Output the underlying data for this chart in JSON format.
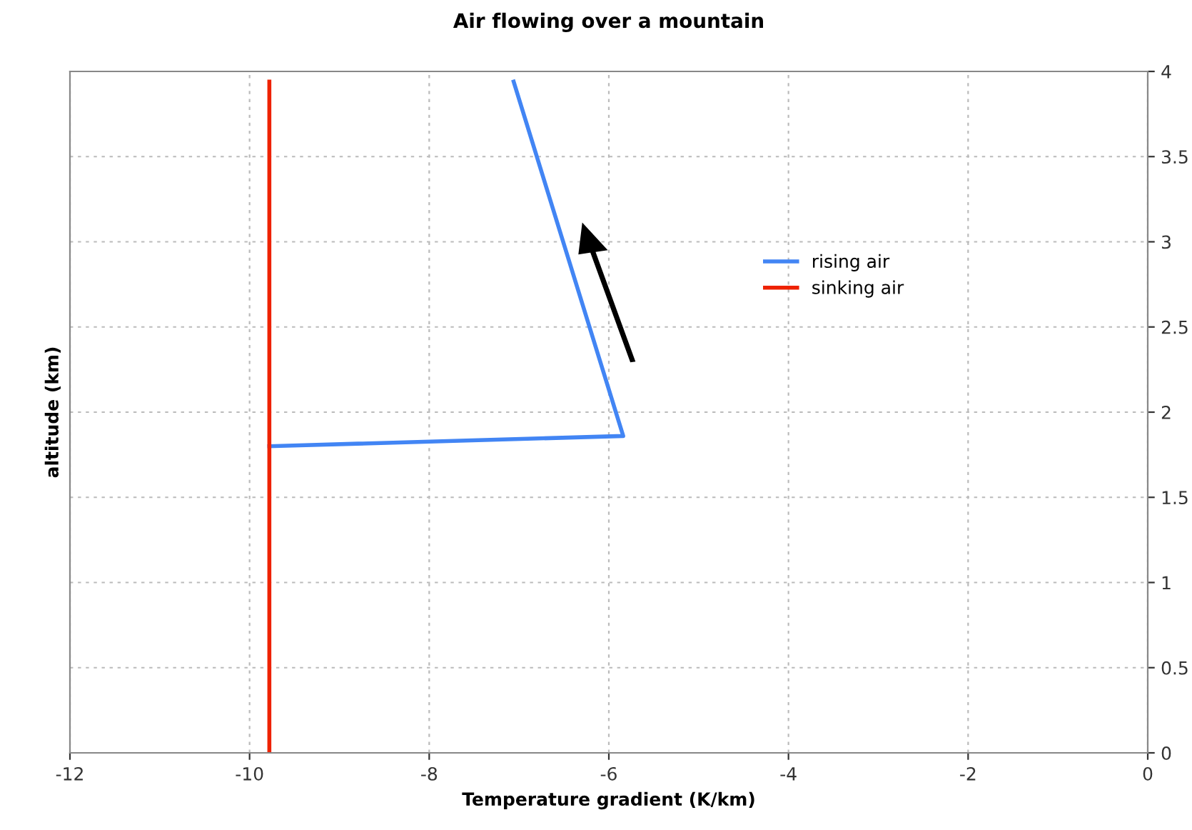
{
  "chart_data": {
    "type": "line",
    "title": "Air flowing over a mountain",
    "xlabel": "Temperature gradient (K/km)",
    "ylabel": "altitude (km)",
    "series": [
      {
        "name": "rising air",
        "color": "#4285f4",
        "x": [
          -9.78,
          -5.84,
          -7.06
        ],
        "values": [
          1.8,
          1.86,
          3.94
        ]
      },
      {
        "name": "sinking air",
        "color": "#ee2200",
        "x": [
          -9.78,
          -9.78
        ],
        "values": [
          0,
          3.94
        ]
      }
    ],
    "xlim": [
      -12,
      0
    ],
    "xticks": [
      -12,
      -10,
      -8,
      -6,
      -4,
      -2,
      0
    ],
    "ylim": [
      0,
      4
    ],
    "yticks": [
      0,
      0.5,
      1,
      1.5,
      2,
      2.5,
      3,
      3.5,
      4
    ],
    "grid": true,
    "legend": "right",
    "marker": "none",
    "line_style": "solid"
  }
}
